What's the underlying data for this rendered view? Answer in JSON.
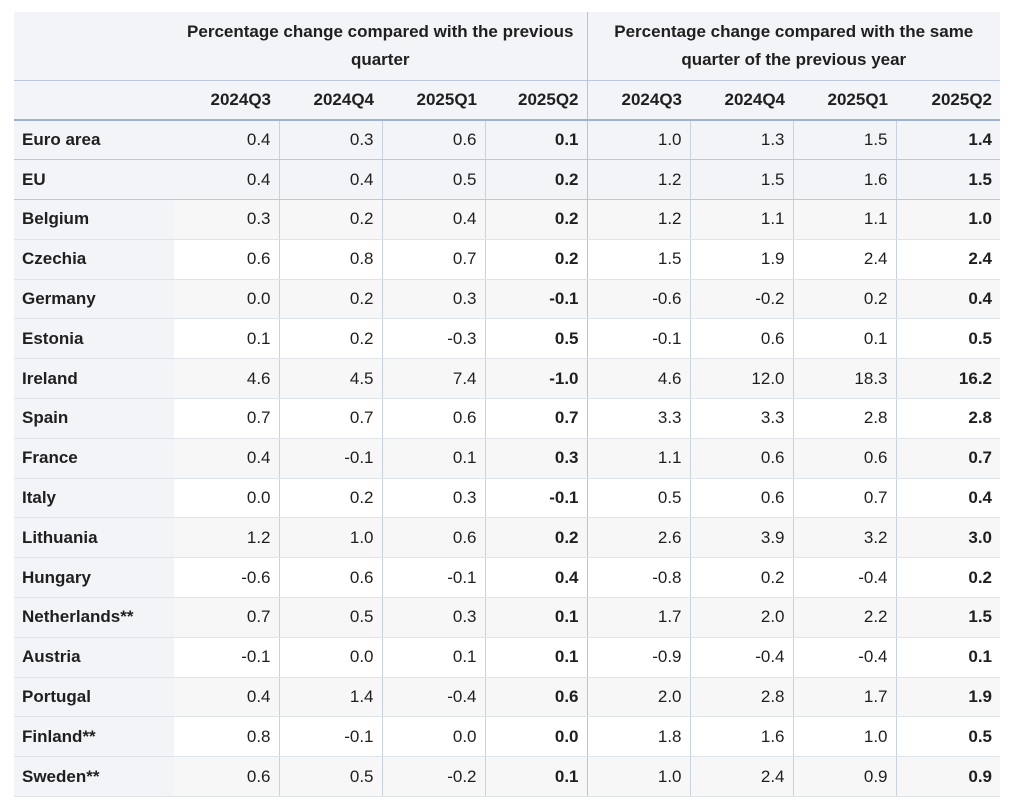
{
  "table": {
    "group_headers": [
      "Percentage change compared with the previous quarter",
      "Percentage change compared with the same quarter of the previous year"
    ],
    "quarters": [
      "2024Q3",
      "2024Q4",
      "2025Q1",
      "2025Q2",
      "2024Q3",
      "2024Q4",
      "2025Q1",
      "2025Q2"
    ],
    "rows": [
      {
        "country": "Euro area",
        "values": [
          "0.4",
          "0.3",
          "0.6",
          "0.1",
          "1.0",
          "1.3",
          "1.5",
          "1.4"
        ]
      },
      {
        "country": "EU",
        "values": [
          "0.4",
          "0.4",
          "0.5",
          "0.2",
          "1.2",
          "1.5",
          "1.6",
          "1.5"
        ]
      },
      {
        "country": "Belgium",
        "values": [
          "0.3",
          "0.2",
          "0.4",
          "0.2",
          "1.2",
          "1.1",
          "1.1",
          "1.0"
        ]
      },
      {
        "country": "Czechia",
        "values": [
          "0.6",
          "0.8",
          "0.7",
          "0.2",
          "1.5",
          "1.9",
          "2.4",
          "2.4"
        ]
      },
      {
        "country": "Germany",
        "values": [
          "0.0",
          "0.2",
          "0.3",
          "-0.1",
          "-0.6",
          "-0.2",
          "0.2",
          "0.4"
        ]
      },
      {
        "country": "Estonia",
        "values": [
          "0.1",
          "0.2",
          "-0.3",
          "0.5",
          "-0.1",
          "0.6",
          "0.1",
          "0.5"
        ]
      },
      {
        "country": "Ireland",
        "values": [
          "4.6",
          "4.5",
          "7.4",
          "-1.0",
          "4.6",
          "12.0",
          "18.3",
          "16.2"
        ]
      },
      {
        "country": "Spain",
        "values": [
          "0.7",
          "0.7",
          "0.6",
          "0.7",
          "3.3",
          "3.3",
          "2.8",
          "2.8"
        ]
      },
      {
        "country": "France",
        "values": [
          "0.4",
          "-0.1",
          "0.1",
          "0.3",
          "1.1",
          "0.6",
          "0.6",
          "0.7"
        ]
      },
      {
        "country": "Italy",
        "values": [
          "0.0",
          "0.2",
          "0.3",
          "-0.1",
          "0.5",
          "0.6",
          "0.7",
          "0.4"
        ]
      },
      {
        "country": "Lithuania",
        "values": [
          "1.2",
          "1.0",
          "0.6",
          "0.2",
          "2.6",
          "3.9",
          "3.2",
          "3.0"
        ]
      },
      {
        "country": "Hungary",
        "values": [
          "-0.6",
          "0.6",
          "-0.1",
          "0.4",
          "-0.8",
          "0.2",
          "-0.4",
          "0.2"
        ]
      },
      {
        "country": "Netherlands**",
        "values": [
          "0.7",
          "0.5",
          "0.3",
          "0.1",
          "1.7",
          "2.0",
          "2.2",
          "1.5"
        ]
      },
      {
        "country": "Austria",
        "values": [
          "-0.1",
          "0.0",
          "0.1",
          "0.1",
          "-0.9",
          "-0.4",
          "-0.4",
          "0.1"
        ]
      },
      {
        "country": "Portugal",
        "values": [
          "0.4",
          "1.4",
          "-0.4",
          "0.6",
          "2.0",
          "2.8",
          "1.7",
          "1.9"
        ]
      },
      {
        "country": "Finland**",
        "values": [
          "0.8",
          "-0.1",
          "0.0",
          "0.0",
          "1.8",
          "1.6",
          "1.0",
          "0.5"
        ]
      },
      {
        "country": "Sweden**",
        "values": [
          "0.6",
          "0.5",
          "-0.2",
          "0.1",
          "1.0",
          "2.4",
          "0.9",
          "0.9"
        ]
      }
    ]
  }
}
